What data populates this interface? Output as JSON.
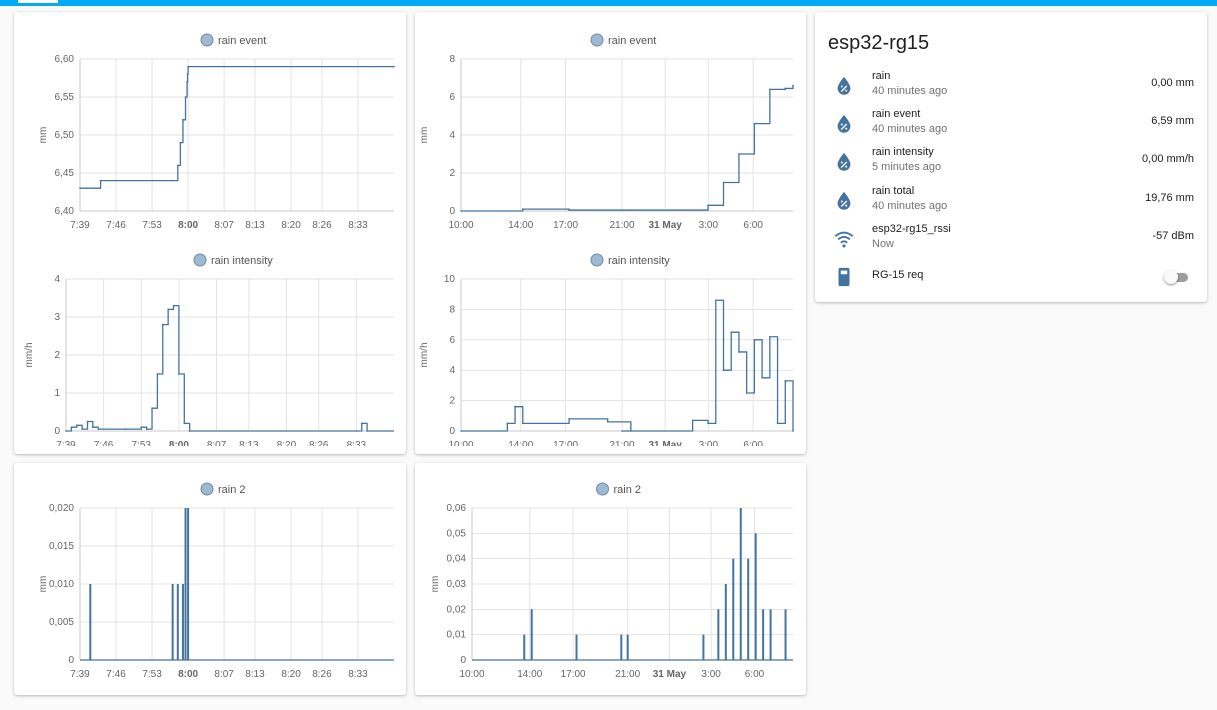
{
  "accent_color": "#03a9f4",
  "series_color": "#44739e",
  "charts": [
    {
      "id": "c0",
      "legend": "rain event",
      "ylabel": "mm",
      "xticks": [
        "7:39",
        "7:46",
        "7:53",
        "8:00",
        "8:07",
        "8:13",
        "8:20",
        "8:26",
        "8:33"
      ],
      "yticks": [
        "6,40",
        "6,45",
        "6,50",
        "6,55",
        "6,60"
      ]
    },
    {
      "id": "c1",
      "legend": "rain event",
      "ylabel": "mm",
      "xticks": [
        "10:00",
        "14:00",
        "17:00",
        "21:00",
        "31 May",
        "3:00",
        "6:00"
      ],
      "yticks": [
        "0",
        "2",
        "4",
        "6",
        "8"
      ]
    },
    {
      "id": "c2",
      "legend": "rain intensity",
      "ylabel": "mm/h",
      "xticks": [
        "7:39",
        "7:46",
        "7:53",
        "8:00",
        "8:07",
        "8:13",
        "8:20",
        "8:26",
        "8:33"
      ],
      "yticks": [
        "0",
        "1",
        "2",
        "3",
        "4"
      ]
    },
    {
      "id": "c3",
      "legend": "rain intensity",
      "ylabel": "mm/h",
      "xticks": [
        "10:00",
        "14:00",
        "17:00",
        "21:00",
        "31 May",
        "3:00",
        "6:00"
      ],
      "yticks": [
        "0",
        "2",
        "4",
        "6",
        "8",
        "10"
      ]
    },
    {
      "id": "c4",
      "legend": "rain 2",
      "ylabel": "mm",
      "xticks": [
        "7:39",
        "7:46",
        "7:53",
        "8:00",
        "8:07",
        "8:13",
        "8:20",
        "8:26",
        "8:33"
      ],
      "yticks": [
        "0",
        "0,005",
        "0,010",
        "0,015",
        "0,020"
      ]
    },
    {
      "id": "c5",
      "legend": "rain 2",
      "ylabel": "mm",
      "xticks": [
        "10:00",
        "14:00",
        "17:00",
        "21:00",
        "31 May",
        "3:00",
        "6:00"
      ],
      "yticks": [
        "0",
        "0,01",
        "0,02",
        "0,03",
        "0,04",
        "0,05",
        "0,06"
      ]
    }
  ],
  "chart_data": [
    {
      "type": "line",
      "series": [
        {
          "name": "rain event",
          "x": [
            "7:39",
            "7:42",
            "7:43",
            "7:57",
            "7:58",
            "7:58.5",
            "7:59",
            "7:59.5",
            "7:59.8",
            "7:59.9",
            "8:00",
            "8:40"
          ],
          "values": [
            6.43,
            6.43,
            6.44,
            6.44,
            6.46,
            6.49,
            6.52,
            6.55,
            6.57,
            6.58,
            6.59,
            6.59
          ]
        }
      ],
      "ylabel": "mm",
      "ylim": [
        6.4,
        6.6
      ]
    },
    {
      "type": "line",
      "series": [
        {
          "name": "rain event",
          "x": [
            "10:00",
            "14:00",
            "17:00",
            "21:00",
            "31 May",
            "2:00",
            "3:00",
            "4:00",
            "5:00",
            "6:00",
            "7:00",
            "7:30"
          ],
          "values": [
            0,
            0.1,
            0.05,
            0.05,
            0.05,
            0.3,
            1.5,
            3.0,
            4.6,
            6.4,
            6.45,
            6.6
          ]
        }
      ],
      "ylabel": "mm",
      "ylim": [
        0,
        8
      ]
    },
    {
      "type": "line",
      "series": [
        {
          "name": "rain intensity",
          "x": [
            "7:39",
            "7:40",
            "7:41",
            "7:42",
            "7:43",
            "7:44",
            "7:45",
            "7:50",
            "7:53",
            "7:54",
            "7:55",
            "7:56",
            "7:57",
            "7:58",
            "7:59",
            "8:00",
            "8:01",
            "8:02",
            "8:33",
            "8:34",
            "8:35"
          ],
          "values": [
            0,
            0.1,
            0.15,
            0.05,
            0.25,
            0.1,
            0.05,
            0.05,
            0.1,
            0.05,
            0.6,
            1.5,
            2.8,
            3.2,
            3.3,
            1.5,
            0.2,
            0,
            0,
            0.2,
            0
          ]
        }
      ],
      "ylabel": "mm/h",
      "ylim": [
        0,
        4
      ]
    },
    {
      "type": "line",
      "series": [
        {
          "name": "rain intensity",
          "x": [
            "10:00",
            "13:00",
            "13:30",
            "14:00",
            "17:00",
            "19:30",
            "21:00",
            "31 May",
            "1:00",
            "2:00",
            "2:30",
            "3:00",
            "3:30",
            "4:00",
            "4:30",
            "5:00",
            "5:30",
            "6:00",
            "6:30",
            "7:00",
            "7:30"
          ],
          "values": [
            0,
            0.5,
            1.6,
            0.5,
            0.8,
            0.6,
            0,
            0,
            0.7,
            0.5,
            8.6,
            4.0,
            6.5,
            5.2,
            2.5,
            6.0,
            3.5,
            6.2,
            0.5,
            3.3,
            0
          ]
        }
      ],
      "ylabel": "mm/h",
      "ylim": [
        0,
        10
      ]
    },
    {
      "type": "bar",
      "series": [
        {
          "name": "rain 2",
          "x": [
            "7:41",
            "7:57",
            "7:58",
            "7:59",
            "7:59.5",
            "8:00"
          ],
          "values": [
            0.01,
            0.01,
            0.01,
            0.01,
            0.02,
            0.02
          ]
        }
      ],
      "ylabel": "mm",
      "ylim": [
        0,
        0.02
      ]
    },
    {
      "type": "bar",
      "series": [
        {
          "name": "rain 2",
          "x": [
            "13:30",
            "14:00",
            "17:00",
            "20:00",
            "31 May",
            "1:30",
            "2:30",
            "3:00",
            "3:30",
            "4:00",
            "4:30",
            "5:00",
            "5:30",
            "6:00",
            "7:00"
          ],
          "values": [
            0.01,
            0.02,
            0.01,
            0.01,
            0.01,
            0.01,
            0.02,
            0.03,
            0.04,
            0.06,
            0.04,
            0.05,
            0.02,
            0.02,
            0.02
          ]
        }
      ],
      "ylabel": "mm",
      "ylim": [
        0,
        0.06
      ]
    }
  ],
  "entities_card": {
    "title": "esp32-rg15",
    "rows": [
      {
        "icon": "water-percent-icon",
        "name": "rain",
        "sub": "40 minutes ago",
        "value": "0,00 mm"
      },
      {
        "icon": "water-percent-icon",
        "name": "rain event",
        "sub": "40 minutes ago",
        "value": "6,59 mm"
      },
      {
        "icon": "water-percent-icon",
        "name": "rain intensity",
        "sub": "5 minutes ago",
        "value": "0,00 mm/h"
      },
      {
        "icon": "water-percent-icon",
        "name": "rain total",
        "sub": "40 minutes ago",
        "value": "19,76 mm"
      },
      {
        "icon": "wifi-icon",
        "name": "esp32-rg15_rssi",
        "sub": "Now",
        "value": "-57 dBm"
      }
    ],
    "switch": {
      "icon": "remote-icon",
      "name": "RG-15 req",
      "state": "off"
    }
  }
}
